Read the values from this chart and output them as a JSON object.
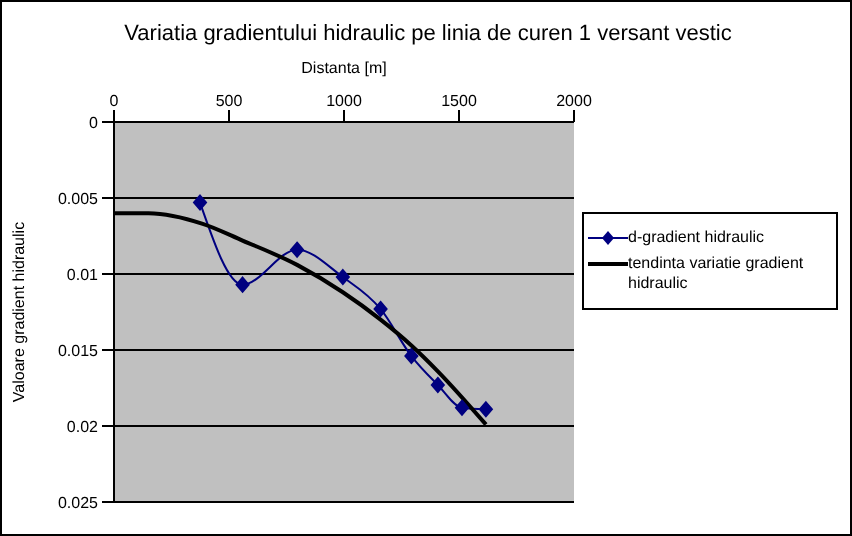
{
  "chart_data": {
    "type": "line",
    "title": "Variatia gradientului hidraulic pe linia de curen 1 versant vestic",
    "xlabel": "Distanta [m]",
    "ylabel": "Valoare gradient hidraulic",
    "xlim": [
      0,
      2000
    ],
    "xticks": [
      0,
      500,
      1000,
      1500,
      2000
    ],
    "ylim": [
      0.025,
      0
    ],
    "yticks": [
      0,
      0.005,
      0.01,
      0.015,
      0.02,
      0.025
    ],
    "grid": "y",
    "legend": "right",
    "series": [
      {
        "name": "d-gradient hidraulic",
        "color": "#000080",
        "marker": "diamond",
        "x": [
          374,
          559,
          796,
          995,
          1159,
          1293,
          1408,
          1513,
          1617
        ],
        "values": [
          0.0053,
          0.0107,
          0.0084,
          0.0102,
          0.0123,
          0.0154,
          0.0173,
          0.0188,
          0.0189
        ]
      },
      {
        "name": "tendinta variatie gradient hidraulic",
        "color": "#000000",
        "marker": "none",
        "x": [
          0,
          150,
          386,
          559,
          796,
          995,
          1159,
          1293,
          1408,
          1617
        ],
        "values": [
          0.006,
          0.006,
          0.0067,
          0.0078,
          0.0094,
          0.0112,
          0.013,
          0.0147,
          0.0164,
          0.0199
        ]
      }
    ]
  }
}
